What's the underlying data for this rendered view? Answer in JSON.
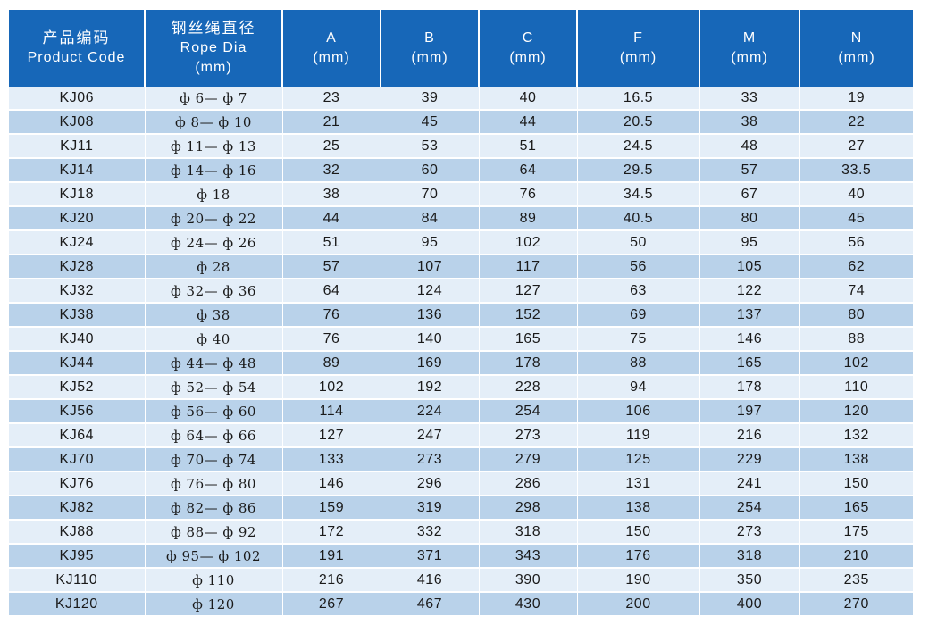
{
  "header": {
    "product_code_zh": "产品编码",
    "product_code_en": "Product Code",
    "rope_dia_zh": "钢丝绳直径",
    "rope_dia_en": "Rope Dia",
    "mm": "(mm)",
    "col_a": "A",
    "col_b": "B",
    "col_c": "C",
    "col_f": "F",
    "col_m": "M",
    "col_n": "N"
  },
  "rows": [
    {
      "code": "KJ06",
      "dia": "ф 6— ф 7",
      "a": "23",
      "b": "39",
      "c": "40",
      "f": "16.5",
      "m": "33",
      "n": "19"
    },
    {
      "code": "KJ08",
      "dia": "ф 8— ф 10",
      "a": "21",
      "b": "45",
      "c": "44",
      "f": "20.5",
      "m": "38",
      "n": "22"
    },
    {
      "code": "KJ11",
      "dia": "ф 11— ф 13",
      "a": "25",
      "b": "53",
      "c": "51",
      "f": "24.5",
      "m": "48",
      "n": "27"
    },
    {
      "code": "KJ14",
      "dia": "ф 14— ф 16",
      "a": "32",
      "b": "60",
      "c": "64",
      "f": "29.5",
      "m": "57",
      "n": "33.5"
    },
    {
      "code": "KJ18",
      "dia": "ф 18",
      "a": "38",
      "b": "70",
      "c": "76",
      "f": "34.5",
      "m": "67",
      "n": "40"
    },
    {
      "code": "KJ20",
      "dia": "ф 20— ф 22",
      "a": "44",
      "b": "84",
      "c": "89",
      "f": "40.5",
      "m": "80",
      "n": "45"
    },
    {
      "code": "KJ24",
      "dia": "ф 24— ф 26",
      "a": "51",
      "b": "95",
      "c": "102",
      "f": "50",
      "m": "95",
      "n": "56"
    },
    {
      "code": "KJ28",
      "dia": "ф 28",
      "a": "57",
      "b": "107",
      "c": "117",
      "f": "56",
      "m": "105",
      "n": "62"
    },
    {
      "code": "KJ32",
      "dia": "ф 32— ф 36",
      "a": "64",
      "b": "124",
      "c": "127",
      "f": "63",
      "m": "122",
      "n": "74"
    },
    {
      "code": "KJ38",
      "dia": "ф 38",
      "a": "76",
      "b": "136",
      "c": "152",
      "f": "69",
      "m": "137",
      "n": "80"
    },
    {
      "code": "KJ40",
      "dia": "ф 40",
      "a": "76",
      "b": "140",
      "c": "165",
      "f": "75",
      "m": "146",
      "n": "88"
    },
    {
      "code": "KJ44",
      "dia": "ф 44— ф 48",
      "a": "89",
      "b": "169",
      "c": "178",
      "f": "88",
      "m": "165",
      "n": "102"
    },
    {
      "code": "KJ52",
      "dia": "ф 52— ф 54",
      "a": "102",
      "b": "192",
      "c": "228",
      "f": "94",
      "m": "178",
      "n": "110"
    },
    {
      "code": "KJ56",
      "dia": "ф 56— ф 60",
      "a": "114",
      "b": "224",
      "c": "254",
      "f": "106",
      "m": "197",
      "n": "120"
    },
    {
      "code": "KJ64",
      "dia": "ф 64— ф 66",
      "a": "127",
      "b": "247",
      "c": "273",
      "f": "119",
      "m": "216",
      "n": "132"
    },
    {
      "code": "KJ70",
      "dia": "ф 70— ф 74",
      "a": "133",
      "b": "273",
      "c": "279",
      "f": "125",
      "m": "229",
      "n": "138"
    },
    {
      "code": "KJ76",
      "dia": "ф 76— ф 80",
      "a": "146",
      "b": "296",
      "c": "286",
      "f": "131",
      "m": "241",
      "n": "150"
    },
    {
      "code": "KJ82",
      "dia": "ф 82— ф 86",
      "a": "159",
      "b": "319",
      "c": "298",
      "f": "138",
      "m": "254",
      "n": "165"
    },
    {
      "code": "KJ88",
      "dia": "ф 88— ф 92",
      "a": "172",
      "b": "332",
      "c": "318",
      "f": "150",
      "m": "273",
      "n": "175"
    },
    {
      "code": "KJ95",
      "dia": "ф 95— ф 102",
      "a": "191",
      "b": "371",
      "c": "343",
      "f": "176",
      "m": "318",
      "n": "210"
    },
    {
      "code": "KJ110",
      "dia": "ф 110",
      "a": "216",
      "b": "416",
      "c": "390",
      "f": "190",
      "m": "350",
      "n": "235"
    },
    {
      "code": "KJ120",
      "dia": "ф 120",
      "a": "267",
      "b": "467",
      "c": "430",
      "f": "200",
      "m": "400",
      "n": "270"
    }
  ],
  "colors": {
    "header_bg": "#1767b8",
    "row_light": "#e4eef8",
    "row_dark": "#b9d2ea"
  }
}
